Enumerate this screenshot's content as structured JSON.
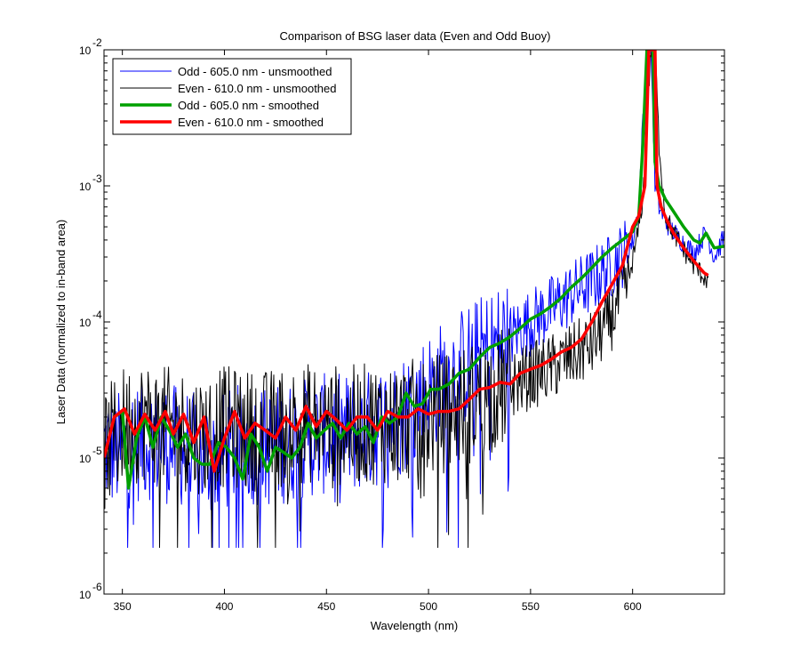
{
  "chart_data": {
    "type": "line",
    "title": "Comparison of BSG laser data (Even and Odd Buoy)",
    "xlabel": "Wavelength (nm)",
    "ylabel": "Laser Data (normalized to in-band area)",
    "xlim": [
      341,
      645
    ],
    "ylim": [
      1e-06,
      0.01
    ],
    "yscale": "log",
    "x_ticks": [
      350,
      400,
      450,
      500,
      550,
      600
    ],
    "y_ticks": [
      {
        "value": 1e-06,
        "base": "10",
        "exp": "-6"
      },
      {
        "value": 1e-05,
        "base": "10",
        "exp": "-5"
      },
      {
        "value": 0.0001,
        "base": "10",
        "exp": "-4"
      },
      {
        "value": 0.001,
        "base": "10",
        "exp": "-3"
      },
      {
        "value": 0.01,
        "base": "10",
        "exp": "-2"
      }
    ],
    "grid": false,
    "legend_position": "top-left",
    "series": [
      {
        "name": "Odd - 605.0 nm - unsmoothed",
        "color": "#0000ff",
        "width": 1,
        "noise": true,
        "x": [
          341,
          350,
          360,
          370,
          380,
          390,
          400,
          410,
          420,
          430,
          440,
          450,
          460,
          470,
          480,
          490,
          500,
          510,
          520,
          530,
          540,
          550,
          560,
          570,
          580,
          590,
          600,
          603,
          605,
          607,
          609,
          611,
          613,
          616,
          620,
          625,
          630,
          636,
          640,
          645
        ],
        "y": [
          1.2e-05,
          1.1e-05,
          1.4e-05,
          1.3e-05,
          1.2e-05,
          1e-05,
          1.1e-05,
          1.3e-05,
          1.2e-05,
          1.3e-05,
          1.4e-05,
          1.5e-05,
          1.5e-05,
          1.6e-05,
          1.8e-05,
          2.3e-05,
          3.1e-05,
          4e-05,
          5e-05,
          6.2e-05,
          7.8e-05,
          0.0001,
          0.000125,
          0.00016,
          0.0002,
          0.00026,
          0.00038,
          0.0007,
          0.003,
          0.01,
          0.01,
          0.001,
          0.0007,
          0.00055,
          0.00046,
          0.00038,
          0.00032,
          0.00046,
          0.0003,
          0.00042
        ]
      },
      {
        "name": "Even - 610.0 nm - unsmoothed",
        "color": "#000000",
        "width": 1,
        "noise": true,
        "x": [
          341,
          350,
          360,
          370,
          380,
          390,
          400,
          410,
          420,
          430,
          440,
          450,
          460,
          470,
          480,
          490,
          500,
          510,
          520,
          530,
          540,
          550,
          560,
          570,
          580,
          590,
          598,
          602,
          605,
          607,
          609,
          611,
          613,
          616,
          620,
          625,
          630,
          637
        ],
        "y": [
          1.1e-05,
          1.7e-05,
          1.9e-05,
          1.7e-05,
          1.6e-05,
          1.5e-05,
          1.7e-05,
          1.6e-05,
          1.6e-05,
          1.7e-05,
          1.8e-05,
          1.8e-05,
          1.7e-05,
          1.8e-05,
          1.8e-05,
          1.9e-05,
          2e-05,
          2.2e-05,
          2.5e-05,
          3e-05,
          3.4e-05,
          4e-05,
          4.6e-05,
          5.5e-05,
          6.8e-05,
          0.00011,
          0.0002,
          0.0004,
          0.0008,
          0.003,
          0.01,
          0.01,
          0.002,
          0.0006,
          0.00045,
          0.00034,
          0.00026,
          0.0002
        ]
      },
      {
        "name": "Odd - 605.0 nm - smoothed",
        "color": "#00a000",
        "width": 3.5,
        "noise": false,
        "x": [
          341,
          346,
          350,
          353,
          357,
          361,
          365,
          369,
          373,
          377,
          381,
          385,
          389,
          393,
          397,
          401,
          405,
          409,
          413,
          417,
          421,
          425,
          429,
          433,
          437,
          441,
          445,
          449,
          453,
          457,
          461,
          465,
          469,
          473,
          477,
          481,
          485,
          489,
          493,
          497,
          501,
          505,
          510,
          515,
          520,
          525,
          530,
          535,
          540,
          545,
          550,
          555,
          560,
          565,
          570,
          575,
          580,
          585,
          590,
          595,
          600,
          603,
          605,
          607,
          609,
          610,
          611,
          613,
          616,
          620,
          625,
          630,
          633,
          636,
          640,
          645
        ],
        "y": [
          1e-05,
          2e-05,
          2.2e-05,
          6e-06,
          1.4e-05,
          2e-05,
          1.2e-05,
          2e-05,
          1.6e-05,
          1.2e-05,
          1.5e-05,
          1e-05,
          9e-06,
          9e-06,
          1.3e-05,
          1.2e-05,
          1e-05,
          7e-06,
          1.5e-05,
          1.2e-05,
          8e-06,
          1.2e-05,
          1.1e-05,
          1e-05,
          1.2e-05,
          1.8e-05,
          1.4e-05,
          1.6e-05,
          1.8e-05,
          1.4e-05,
          1.8e-05,
          1.5e-05,
          1.7e-05,
          1.3e-05,
          2e-05,
          1.8e-05,
          2e-05,
          3e-05,
          2.4e-05,
          2.5e-05,
          3.2e-05,
          3.2e-05,
          3.5e-05,
          4.2e-05,
          4.5e-05,
          5.5e-05,
          6.5e-05,
          7e-05,
          7.8e-05,
          9e-05,
          0.000105,
          0.000115,
          0.00013,
          0.00015,
          0.00018,
          0.00021,
          0.00025,
          0.0003,
          0.00035,
          0.0004,
          0.00046,
          0.0006,
          0.002,
          0.01,
          0.01,
          0.01,
          0.0015,
          0.001,
          0.0008,
          0.00065,
          0.0005,
          0.0004,
          0.00038,
          0.00045,
          0.00035,
          0.00036
        ]
      },
      {
        "name": "Even - 610.0 nm - smoothed",
        "color": "#ff0000",
        "width": 3.5,
        "noise": false,
        "x": [
          341,
          346,
          351,
          356,
          361,
          366,
          371,
          375,
          380,
          385,
          390,
          395,
          400,
          405,
          410,
          415,
          420,
          425,
          430,
          435,
          440,
          445,
          450,
          455,
          460,
          465,
          470,
          475,
          480,
          485,
          490,
          495,
          500,
          505,
          510,
          515,
          520,
          525,
          530,
          535,
          540,
          545,
          550,
          555,
          560,
          565,
          570,
          575,
          580,
          585,
          590,
          595,
          600,
          603,
          606,
          608,
          609,
          610,
          611,
          612,
          614,
          617,
          620,
          625,
          630,
          635,
          637
        ],
        "y": [
          1e-05,
          2e-05,
          2.3e-05,
          1.5e-05,
          2.1e-05,
          1.6e-05,
          2.2e-05,
          1.5e-05,
          2.1e-05,
          1.3e-05,
          2e-05,
          8e-06,
          1.4e-05,
          2.2e-05,
          1.4e-05,
          1.8e-05,
          1.6e-05,
          1.4e-05,
          2e-05,
          1.6e-05,
          2.4e-05,
          1.7e-05,
          2.2e-05,
          1.9e-05,
          1.6e-05,
          2e-05,
          2e-05,
          1.6e-05,
          2.2e-05,
          2e-05,
          2e-05,
          2.3e-05,
          2.1e-05,
          2.2e-05,
          2.2e-05,
          2.3e-05,
          2.7e-05,
          3.2e-05,
          3.3e-05,
          3.6e-05,
          3.5e-05,
          4.2e-05,
          4.5e-05,
          4.8e-05,
          5.3e-05,
          6e-05,
          6.5e-05,
          7.5e-05,
          0.0001,
          0.00014,
          0.00019,
          0.00026,
          0.0005,
          0.0006,
          0.001,
          0.01,
          0.01,
          0.01,
          0.01,
          0.001,
          0.0007,
          0.00055,
          0.00045,
          0.00035,
          0.00028,
          0.00023,
          0.00022
        ]
      }
    ]
  }
}
